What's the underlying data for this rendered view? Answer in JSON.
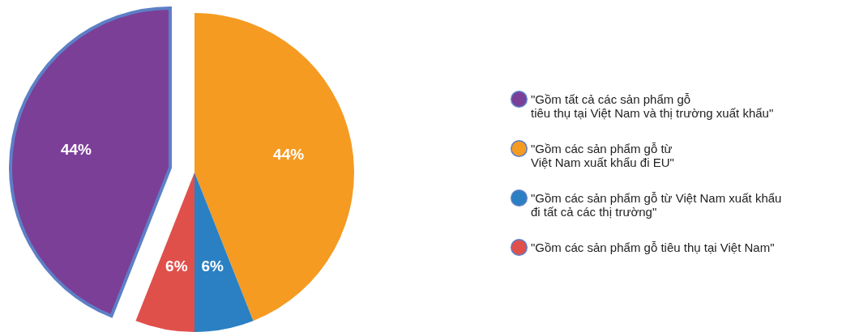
{
  "chart_data": {
    "type": "pie",
    "categories": [
      "\"Gồm tất cả các sản phẩm gỗ\ntiêu thụ tại Việt Nam và thị trường xuất khẩu\"",
      "\"Gồm các sản phẩm gỗ từ\nViệt Nam xuất khẩu đi EU\"",
      "\"Gồm các sản phẩm gỗ từ Việt Nam xuất khẩu\nđi tất cả các thị trường\"",
      "\"Gồm các sản phẩm gỗ tiêu thụ tại Việt Nam\""
    ],
    "values": [
      44,
      44,
      6,
      6
    ],
    "colors": [
      "#7b3f98",
      "#f59b22",
      "#2a80c2",
      "#e0504b"
    ],
    "value_labels": [
      "44%",
      "44%",
      "6%",
      "6%"
    ],
    "legend": "right"
  }
}
